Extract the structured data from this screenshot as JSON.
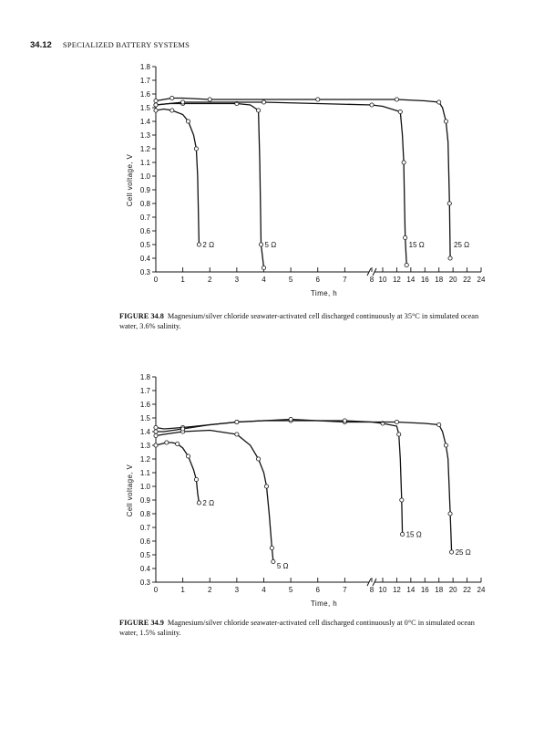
{
  "header": {
    "page_number": "34.12",
    "section_title": "SPECIALIZED BATTERY SYSTEMS"
  },
  "chart_data": [
    {
      "type": "line",
      "figure_label": "FIGURE 34.8",
      "caption": "Magnesium/silver chloride seawater-activated cell discharged continuously at 35°C in simulated ocean water, 3.6% salinity.",
      "ylabel": "Cell voltage, V",
      "xlabel": "Time, h",
      "ylim": [
        0.3,
        1.8
      ],
      "yticks": [
        "0.3",
        "0.4",
        "0.5",
        "0.6",
        "0.7",
        "0.8",
        "0.9",
        "1.0",
        "1.1",
        "1.2",
        "1.3",
        "1.4",
        "1.5",
        "1.6",
        "1.7",
        "1.8"
      ],
      "x_broken_axis": true,
      "xticks_low": [
        "0",
        "1",
        "2",
        "3",
        "4",
        "5",
        "6",
        "7",
        "8"
      ],
      "xticks_high": [
        "10",
        "12",
        "14",
        "16",
        "18",
        "20",
        "22",
        "24"
      ],
      "series": [
        {
          "name": "2 Ω",
          "x": [
            0,
            0.3,
            0.6,
            1.0,
            1.2,
            1.4,
            1.5,
            1.55,
            1.6
          ],
          "y": [
            1.48,
            1.49,
            1.48,
            1.45,
            1.4,
            1.3,
            1.2,
            1.0,
            0.5
          ]
        },
        {
          "name": "5 Ω",
          "x": [
            0,
            0.5,
            1.0,
            2.0,
            3.0,
            3.5,
            3.8,
            3.85,
            3.9,
            4.0
          ],
          "y": [
            1.52,
            1.53,
            1.53,
            1.53,
            1.53,
            1.52,
            1.48,
            1.1,
            0.5,
            0.33
          ]
        },
        {
          "name": "15 Ω",
          "x": [
            0,
            0.5,
            1,
            2,
            4,
            6,
            8,
            10,
            12.5,
            12.8,
            13.0,
            13.1,
            13.2,
            13.4
          ],
          "y": [
            1.52,
            1.53,
            1.54,
            1.54,
            1.54,
            1.53,
            1.52,
            1.51,
            1.47,
            1.3,
            1.1,
            0.8,
            0.55,
            0.35
          ]
        },
        {
          "name": "25 Ω",
          "x": [
            0,
            0.3,
            0.6,
            1,
            2,
            4,
            6,
            8,
            12,
            16,
            18,
            18.5,
            19.0,
            19.3,
            19.5,
            19.6
          ],
          "y": [
            1.55,
            1.56,
            1.57,
            1.57,
            1.56,
            1.56,
            1.56,
            1.56,
            1.56,
            1.55,
            1.54,
            1.5,
            1.4,
            1.25,
            0.8,
            0.4
          ]
        }
      ],
      "curve_labels": [
        {
          "text": "2 Ω",
          "x": 1.6,
          "y": 0.5
        },
        {
          "text": "5 Ω",
          "x": 3.9,
          "y": 0.5
        },
        {
          "text": "15 Ω",
          "x": 13.2,
          "y": 0.5
        },
        {
          "text": "25 Ω",
          "x": 19.6,
          "y": 0.5
        }
      ]
    },
    {
      "type": "line",
      "figure_label": "FIGURE 34.9",
      "caption": "Magnesium/silver chloride seawater-activated cell discharged continuously at 0°C in simulated ocean water, 1.5% salinity.",
      "ylabel": "Cell voltage, V",
      "xlabel": "Time, h",
      "ylim": [
        0.3,
        1.8
      ],
      "yticks": [
        "0.3",
        "0.4",
        "0.5",
        "0.6",
        "0.7",
        "0.8",
        "0.9",
        "1.0",
        "1.1",
        "1.2",
        "1.3",
        "1.4",
        "1.5",
        "1.6",
        "1.7",
        "1.8"
      ],
      "x_broken_axis": true,
      "xticks_low": [
        "0",
        "1",
        "2",
        "3",
        "4",
        "5",
        "6",
        "7",
        "8"
      ],
      "xticks_high": [
        "10",
        "12",
        "14",
        "16",
        "18",
        "20",
        "22",
        "24"
      ],
      "series": [
        {
          "name": "2 Ω",
          "x": [
            0,
            0.2,
            0.4,
            0.6,
            0.8,
            1.0,
            1.2,
            1.4,
            1.5,
            1.55,
            1.6
          ],
          "y": [
            1.3,
            1.31,
            1.32,
            1.32,
            1.31,
            1.28,
            1.22,
            1.12,
            1.05,
            0.95,
            0.88
          ]
        },
        {
          "name": "5 Ω",
          "x": [
            0,
            0.3,
            1,
            2,
            3,
            3.5,
            3.8,
            4.0,
            4.1,
            4.2,
            4.3,
            4.35
          ],
          "y": [
            1.37,
            1.38,
            1.4,
            1.41,
            1.38,
            1.3,
            1.2,
            1.1,
            1.0,
            0.8,
            0.55,
            0.45
          ]
        },
        {
          "name": "15 Ω",
          "x": [
            0,
            0.3,
            1,
            2,
            3,
            4,
            5,
            6,
            7,
            8,
            10,
            12,
            12.3,
            12.5,
            12.7,
            12.8
          ],
          "y": [
            1.43,
            1.42,
            1.43,
            1.45,
            1.47,
            1.48,
            1.48,
            1.48,
            1.47,
            1.47,
            1.46,
            1.44,
            1.38,
            1.2,
            0.9,
            0.65
          ]
        },
        {
          "name": "25 Ω",
          "x": [
            0,
            0.3,
            1,
            2,
            3,
            4,
            5,
            6,
            7,
            8,
            12,
            16,
            18,
            18.5,
            19,
            19.3,
            19.6,
            19.8
          ],
          "y": [
            1.4,
            1.4,
            1.42,
            1.45,
            1.47,
            1.48,
            1.49,
            1.48,
            1.48,
            1.47,
            1.47,
            1.46,
            1.45,
            1.4,
            1.3,
            1.2,
            0.8,
            0.52
          ]
        }
      ],
      "curve_labels": [
        {
          "text": "2 Ω",
          "x": 1.6,
          "y": 0.88
        },
        {
          "text": "5 Ω",
          "x": 4.35,
          "y": 0.42
        },
        {
          "text": "15 Ω",
          "x": 12.8,
          "y": 0.65
        },
        {
          "text": "25 Ω",
          "x": 19.8,
          "y": 0.52
        }
      ]
    }
  ]
}
